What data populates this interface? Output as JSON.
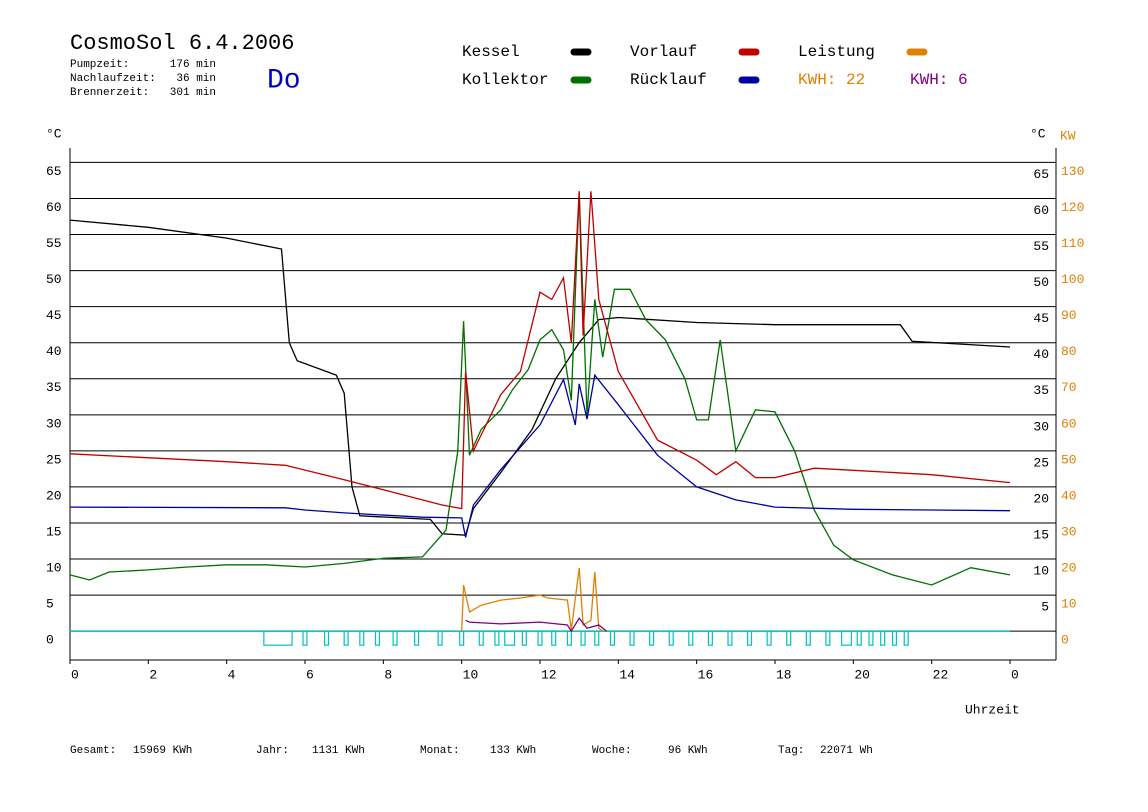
{
  "chart_data": {
    "type": "line",
    "title": "CosmoSol 6.4.2006",
    "day": "Do",
    "stats": [
      {
        "label": "Pumpzeit:",
        "value": "176 min"
      },
      {
        "label": "Nachlaufzeit:",
        "value": "36 min"
      },
      {
        "label": "Brennerzeit:",
        "value": "301 min"
      }
    ],
    "footer": [
      {
        "label": "Gesamt:",
        "value": "15969 KWh"
      },
      {
        "label": "Jahr:",
        "value": "1131 KWh"
      },
      {
        "label": "Monat:",
        "value": "133 KWh"
      },
      {
        "label": "Woche:",
        "value": "96 KWh"
      },
      {
        "label": "Tag:",
        "value": "22071 Wh"
      }
    ],
    "x_label": "Uhrzeit",
    "y_label": "°C",
    "y_label_right": "°C",
    "y2_label": "KW",
    "xlim": [
      0,
      24
    ],
    "xticks": [
      0,
      2,
      4,
      6,
      8,
      10,
      12,
      14,
      16,
      18,
      20,
      22,
      {
        "value": 24,
        "label": "0"
      }
    ],
    "ylim": [
      -4,
      67
    ],
    "yticks": [
      0,
      5,
      10,
      15,
      20,
      25,
      30,
      35,
      40,
      45,
      50,
      55,
      60,
      65
    ],
    "yticks_right": [
      5,
      10,
      15,
      20,
      25,
      30,
      35,
      40,
      45,
      50,
      55,
      60,
      65
    ],
    "y2lim": [
      -8,
      134
    ],
    "y2ticks": [
      0,
      10,
      20,
      30,
      40,
      50,
      60,
      70,
      80,
      90,
      100,
      110,
      120,
      130
    ],
    "y2_color": "#e08000",
    "grid": true,
    "series": [
      {
        "name": "Kessel",
        "color": "#000000",
        "x": [
          0,
          2,
          4,
          5.4,
          5.6,
          5.8,
          6.8,
          7.0,
          7.2,
          7.4,
          9.2,
          9.5,
          10.1,
          10.3,
          11,
          11.8,
          12.4,
          13,
          13.5,
          14,
          16,
          18,
          21.2,
          21.5,
          24
        ],
        "values": [
          57,
          56,
          54.5,
          53,
          40,
          37.5,
          35.5,
          33,
          20,
          16,
          15.5,
          13.5,
          13.3,
          17,
          22,
          28,
          35,
          40,
          43.2,
          43.5,
          42.8,
          42.5,
          42.5,
          40.2,
          39.4
        ]
      },
      {
        "name": "Kollektor",
        "color": "#007000",
        "x": [
          0,
          0.5,
          1,
          2,
          3,
          4,
          5,
          6,
          7,
          8,
          9,
          9.6,
          9.9,
          10.05,
          10.2,
          10.5,
          11,
          11.3,
          11.7,
          12,
          12.3,
          12.6,
          12.8,
          13.0,
          13.2,
          13.4,
          13.6,
          13.9,
          14.3,
          14.7,
          15.2,
          15.7,
          16.0,
          16.3,
          16.6,
          17.0,
          17.5,
          18.0,
          18.5,
          19.0,
          19.5,
          20,
          21,
          22,
          23,
          24
        ],
        "values": [
          7.8,
          7.1,
          8.2,
          8.5,
          8.9,
          9.2,
          9.2,
          8.9,
          9.4,
          10.1,
          10.3,
          14,
          25,
          43,
          24.4,
          28,
          30.7,
          33.5,
          36.3,
          40.4,
          41.8,
          39,
          32,
          61,
          30,
          46,
          38,
          47.4,
          47.4,
          43.2,
          40.4,
          35,
          29.3,
          29.3,
          40.4,
          25,
          30.7,
          30.4,
          25,
          16.8,
          11.9,
          9.9,
          7.8,
          6.4,
          8.8,
          7.8
        ]
      },
      {
        "name": "Vorlauf",
        "color": "#c00000",
        "x": [
          0,
          4,
          5.5,
          7,
          8,
          9.5,
          10.0,
          10.1,
          10.3,
          11,
          11.5,
          12,
          12.3,
          12.6,
          12.8,
          13.0,
          13.1,
          13.3,
          13.5,
          14,
          15,
          16,
          16.5,
          17,
          17.5,
          18,
          19,
          20,
          22,
          24
        ],
        "values": [
          24.6,
          23.5,
          23,
          21,
          19.6,
          17.5,
          17,
          36,
          25,
          32.8,
          36,
          47,
          46,
          49,
          40,
          61,
          41,
          61,
          46,
          36,
          26.5,
          23.7,
          21.7,
          23.5,
          21.3,
          21.3,
          22.6,
          22.3,
          21.7,
          20.6
        ]
      },
      {
        "name": "Rücklauf",
        "color": "#0000a0",
        "x": [
          0,
          5.5,
          6,
          7,
          9,
          10,
          10.1,
          10.3,
          11,
          12,
          12.6,
          12.9,
          13.0,
          13.2,
          13.4,
          14,
          15,
          16,
          17,
          18,
          20,
          22,
          24
        ],
        "values": [
          17.2,
          17.1,
          16.8,
          16.4,
          15.8,
          15.7,
          13,
          17.5,
          22.4,
          28.6,
          34.9,
          28.6,
          34.3,
          29.4,
          35.5,
          31.4,
          24.4,
          20,
          18.2,
          17.2,
          16.9,
          16.8,
          16.7
        ]
      },
      {
        "name": "Leistung",
        "color": "#e08000",
        "axis": "y2",
        "kwh": "KWH: 22",
        "x": [
          10.0,
          10.05,
          10.2,
          10.5,
          11,
          11.5,
          12,
          12.2,
          12.7,
          12.8,
          13.0,
          13.1,
          13.3,
          13.4,
          13.5,
          13.6
        ],
        "values": [
          0,
          12.8,
          5.3,
          7.2,
          8.6,
          9.2,
          10,
          9.2,
          8.6,
          0.3,
          17.5,
          1.7,
          3,
          16.4,
          0.8,
          0
        ]
      },
      {
        "name": "KWH: 6",
        "color": "#800080",
        "axis": "y2",
        "x": [
          10.1,
          10.2,
          11,
          12,
          12.7,
          12.8,
          13.0,
          13.2,
          13.5,
          13.7
        ],
        "values": [
          3,
          2.5,
          2,
          2.5,
          1.7,
          0,
          3.6,
          0.8,
          1.7,
          0
        ]
      }
    ],
    "pump_color": "#00c0c0",
    "pump_intervals": [
      [
        4.95,
        5.67
      ],
      [
        5.95,
        6.05
      ],
      [
        6.5,
        6.6
      ],
      [
        7.0,
        7.1
      ],
      [
        7.4,
        7.5
      ],
      [
        7.8,
        7.9
      ],
      [
        8.25,
        8.35
      ],
      [
        8.8,
        8.9
      ],
      [
        9.4,
        9.5
      ],
      [
        9.95,
        10.05
      ],
      [
        10.45,
        10.55
      ],
      [
        10.85,
        10.95
      ],
      [
        11.1,
        11.35
      ],
      [
        11.55,
        11.65
      ],
      [
        11.95,
        12.05
      ],
      [
        12.3,
        12.4
      ],
      [
        12.7,
        12.8
      ],
      [
        13.05,
        13.15
      ],
      [
        13.4,
        13.5
      ],
      [
        13.8,
        13.9
      ],
      [
        14.3,
        14.4
      ],
      [
        14.8,
        14.9
      ],
      [
        15.3,
        15.4
      ],
      [
        15.8,
        15.9
      ],
      [
        16.3,
        16.4
      ],
      [
        16.8,
        16.9
      ],
      [
        17.3,
        17.4
      ],
      [
        17.8,
        17.9
      ],
      [
        18.3,
        18.4
      ],
      [
        18.8,
        18.9
      ],
      [
        19.3,
        19.4
      ],
      [
        19.7,
        19.95
      ],
      [
        20.1,
        20.2
      ],
      [
        20.4,
        20.5
      ],
      [
        20.7,
        20.8
      ],
      [
        21.0,
        21.1
      ],
      [
        21.3,
        21.4
      ]
    ]
  }
}
